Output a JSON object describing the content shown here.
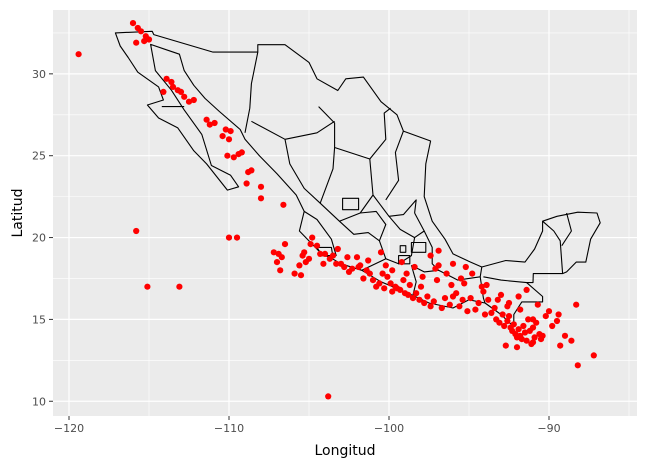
{
  "chart_data": {
    "type": "scatter",
    "title": "",
    "xlabel": "Longitud",
    "ylabel": "Latitud",
    "xlim": [
      -121,
      -84.5
    ],
    "ylim": [
      9.1,
      33.9
    ],
    "x_ticks": [
      -120,
      -110,
      -100,
      -90
    ],
    "y_ticks": [
      10,
      15,
      20,
      25,
      30
    ],
    "x_tick_labels": [
      "−120",
      "−110",
      "−100",
      "−90"
    ],
    "y_tick_labels": [
      "10",
      "15",
      "20",
      "25",
      "30"
    ],
    "grid": true,
    "legend": "none",
    "colors": {
      "panel": "#ebebeb",
      "grid": "#ffffff",
      "points": "#ff0000",
      "outline": "#000000"
    },
    "map_layer": "mexico-state-boundaries",
    "series": [
      {
        "points": [
          [
            -119.4,
            31.2
          ],
          [
            -116.0,
            33.1
          ],
          [
            -115.7,
            32.8
          ],
          [
            -115.5,
            32.6
          ],
          [
            -115.2,
            32.3
          ],
          [
            -115.0,
            32.1
          ],
          [
            -115.8,
            31.9
          ],
          [
            -115.3,
            32.0
          ],
          [
            -113.9,
            29.7
          ],
          [
            -113.6,
            29.5
          ],
          [
            -113.2,
            29.0
          ],
          [
            -113.0,
            28.9
          ],
          [
            -112.8,
            28.6
          ],
          [
            -114.1,
            28.9
          ],
          [
            -113.5,
            29.2
          ],
          [
            -112.5,
            28.3
          ],
          [
            -112.2,
            28.4
          ],
          [
            -111.4,
            27.2
          ],
          [
            -111.2,
            26.9
          ],
          [
            -110.9,
            27.0
          ],
          [
            -110.4,
            26.2
          ],
          [
            -110.0,
            26.0
          ],
          [
            -110.2,
            26.6
          ],
          [
            -109.9,
            26.5
          ],
          [
            -109.4,
            25.1
          ],
          [
            -109.7,
            24.9
          ],
          [
            -109.2,
            25.2
          ],
          [
            -110.1,
            25.0
          ],
          [
            -108.8,
            24.0
          ],
          [
            -108.6,
            24.1
          ],
          [
            -108.9,
            23.3
          ],
          [
            -108.0,
            23.1
          ],
          [
            -108.0,
            22.4
          ],
          [
            -106.6,
            22.0
          ],
          [
            -115.8,
            20.4
          ],
          [
            -110.0,
            20.0
          ],
          [
            -109.5,
            20.0
          ],
          [
            -115.1,
            17.0
          ],
          [
            -113.1,
            17.0
          ],
          [
            -103.8,
            10.3
          ],
          [
            -107.2,
            19.1
          ],
          [
            -106.9,
            19.0
          ],
          [
            -106.7,
            18.8
          ],
          [
            -107.0,
            18.5
          ],
          [
            -106.8,
            18.0
          ],
          [
            -105.9,
            17.8
          ],
          [
            -105.5,
            17.7
          ],
          [
            -105.6,
            18.3
          ],
          [
            -105.4,
            18.9
          ],
          [
            -105.2,
            18.5
          ],
          [
            -105.0,
            18.7
          ],
          [
            -104.9,
            19.6
          ],
          [
            -104.8,
            20.0
          ],
          [
            -104.5,
            19.5
          ],
          [
            -104.3,
            19.0
          ],
          [
            -104.0,
            19.0
          ],
          [
            -103.7,
            18.7
          ],
          [
            -103.5,
            18.9
          ],
          [
            -103.2,
            19.3
          ],
          [
            -103.0,
            18.4
          ],
          [
            -102.8,
            18.2
          ],
          [
            -102.5,
            17.9
          ],
          [
            -102.3,
            18.1
          ],
          [
            -102.0,
            18.8
          ],
          [
            -101.8,
            18.3
          ],
          [
            -101.6,
            17.5
          ],
          [
            -101.4,
            18.0
          ],
          [
            -101.2,
            17.8
          ],
          [
            -101.0,
            17.4
          ],
          [
            -100.8,
            17.0
          ],
          [
            -100.6,
            17.2
          ],
          [
            -100.4,
            17.8
          ],
          [
            -100.3,
            16.9
          ],
          [
            -100.1,
            17.6
          ],
          [
            -99.9,
            17.2
          ],
          [
            -99.8,
            16.7
          ],
          [
            -99.6,
            17.0
          ],
          [
            -99.5,
            16.9
          ],
          [
            -99.3,
            16.8
          ],
          [
            -99.1,
            17.4
          ],
          [
            -99.0,
            16.6
          ],
          [
            -98.8,
            16.5
          ],
          [
            -98.7,
            17.1
          ],
          [
            -98.5,
            16.3
          ],
          [
            -98.3,
            16.6
          ],
          [
            -98.1,
            16.2
          ],
          [
            -98.0,
            17.0
          ],
          [
            -97.8,
            16.0
          ],
          [
            -97.6,
            16.4
          ],
          [
            -97.4,
            15.8
          ],
          [
            -97.2,
            16.1
          ],
          [
            -97.1,
            18.1
          ],
          [
            -96.9,
            18.3
          ],
          [
            -96.7,
            15.7
          ],
          [
            -96.5,
            16.3
          ],
          [
            -96.4,
            17.8
          ],
          [
            -96.2,
            15.9
          ],
          [
            -96.0,
            16.4
          ],
          [
            -95.8,
            16.6
          ],
          [
            -95.6,
            15.8
          ],
          [
            -95.4,
            16.2
          ],
          [
            -95.3,
            17.2
          ],
          [
            -95.1,
            15.5
          ],
          [
            -94.9,
            16.3
          ],
          [
            -94.6,
            15.6
          ],
          [
            -94.4,
            16.0
          ],
          [
            -94.2,
            17.0
          ],
          [
            -94.0,
            15.3
          ],
          [
            -93.8,
            16.2
          ],
          [
            -93.6,
            15.4
          ],
          [
            -93.4,
            15.7
          ],
          [
            -93.3,
            15.0
          ],
          [
            -93.1,
            14.8
          ],
          [
            -92.9,
            15.3
          ],
          [
            -92.8,
            14.6
          ],
          [
            -92.6,
            14.9
          ],
          [
            -92.5,
            15.2
          ],
          [
            -92.4,
            14.5
          ],
          [
            -92.3,
            14.3
          ],
          [
            -92.2,
            14.7
          ],
          [
            -92.1,
            14.1
          ],
          [
            -92.0,
            13.9
          ],
          [
            -91.9,
            14.4
          ],
          [
            -91.8,
            14.0
          ],
          [
            -91.7,
            13.8
          ],
          [
            -91.6,
            14.6
          ],
          [
            -91.5,
            14.2
          ],
          [
            -91.4,
            13.7
          ],
          [
            -91.3,
            15.0
          ],
          [
            -91.2,
            14.3
          ],
          [
            -91.1,
            13.5
          ],
          [
            -91.0,
            14.5
          ],
          [
            -90.9,
            13.9
          ],
          [
            -90.8,
            14.8
          ],
          [
            -90.6,
            14.1
          ],
          [
            -90.5,
            13.8
          ],
          [
            -90.4,
            14.0
          ],
          [
            -92.7,
            13.4
          ],
          [
            -92.0,
            13.3
          ],
          [
            -91.0,
            13.6
          ],
          [
            -89.8,
            14.6
          ],
          [
            -89.5,
            14.9
          ],
          [
            -89.3,
            13.4
          ],
          [
            -89.0,
            14.0
          ],
          [
            -88.6,
            13.7
          ],
          [
            -88.3,
            15.9
          ],
          [
            -88.2,
            12.2
          ],
          [
            -87.2,
            12.8
          ],
          [
            -96.0,
            18.4
          ],
          [
            -95.2,
            18.2
          ],
          [
            -94.8,
            17.8
          ],
          [
            -93.9,
            17.1
          ],
          [
            -93.0,
            16.5
          ],
          [
            -92.5,
            16.0
          ],
          [
            -91.9,
            16.4
          ],
          [
            -91.4,
            16.8
          ],
          [
            -90.7,
            15.9
          ],
          [
            -90.2,
            15.2
          ],
          [
            -96.9,
            19.2
          ],
          [
            -97.4,
            18.9
          ],
          [
            -98.4,
            18.2
          ],
          [
            -99.2,
            18.5
          ],
          [
            -100.2,
            18.3
          ],
          [
            -100.5,
            19.1
          ],
          [
            -101.3,
            18.6
          ],
          [
            -101.9,
            18.2
          ],
          [
            -102.6,
            18.8
          ],
          [
            -103.3,
            18.4
          ],
          [
            -104.1,
            18.4
          ],
          [
            -105.3,
            19.1
          ],
          [
            -106.5,
            19.6
          ],
          [
            -99.8,
            18.0
          ],
          [
            -98.9,
            17.8
          ],
          [
            -97.9,
            17.6
          ],
          [
            -97.0,
            17.4
          ],
          [
            -96.1,
            17.1
          ],
          [
            -95.5,
            17.5
          ],
          [
            -94.1,
            16.7
          ],
          [
            -93.2,
            16.2
          ],
          [
            -92.6,
            15.8
          ],
          [
            -91.8,
            15.6
          ],
          [
            -91.0,
            15.0
          ],
          [
            -90.0,
            15.5
          ],
          [
            -89.4,
            15.3
          ]
        ]
      }
    ]
  }
}
